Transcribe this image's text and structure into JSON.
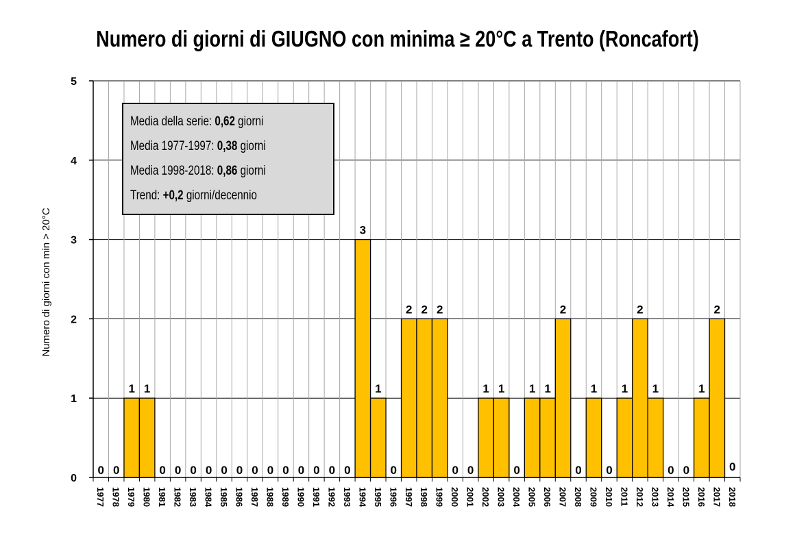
{
  "chart_data": {
    "type": "bar",
    "title": "Numero di giorni di GIUGNO con minima ≥ 20°C a Trento (Roncafort)",
    "ylabel": "Numero di giorni con min > 20°C",
    "xlabel": "",
    "ylim": [
      0,
      5
    ],
    "yticks": [
      "0",
      "1",
      "2",
      "3",
      "4",
      "5"
    ],
    "grid": true,
    "bar_color": "#ffc000",
    "categories": [
      "1977",
      "1978",
      "1979",
      "1980",
      "1981",
      "1982",
      "1983",
      "1984",
      "1985",
      "1986",
      "1987",
      "1988",
      "1989",
      "1990",
      "1991",
      "1992",
      "1993",
      "1994",
      "1995",
      "1996",
      "1997",
      "1998",
      "1999",
      "2000",
      "2001",
      "2002",
      "2003",
      "2004",
      "2005",
      "2006",
      "2007",
      "2008",
      "2009",
      "2010",
      "2011",
      "2012",
      "2013",
      "2014",
      "2015",
      "2016",
      "2017",
      "2018"
    ],
    "values": [
      0,
      0,
      1,
      1,
      0,
      0,
      0,
      0,
      0,
      0,
      0,
      0,
      0,
      0,
      0,
      0,
      0,
      3,
      1,
      0,
      2,
      2,
      2,
      0,
      0,
      1,
      1,
      0,
      1,
      1,
      2,
      0,
      1,
      0,
      1,
      2,
      1,
      0,
      0,
      1,
      2,
      0
    ],
    "annotation": [
      {
        "label": "Media della serie:",
        "value": "0,62",
        "unit": "giorni"
      },
      {
        "label": "Media 1977-1997:",
        "value": "0,38",
        "unit": "giorni"
      },
      {
        "label": "Media 1998-2018:",
        "value": "0,86",
        "unit": "giorni"
      },
      {
        "label": "Trend:",
        "value": "+0,2",
        "unit": "giorni/decennio"
      }
    ]
  }
}
